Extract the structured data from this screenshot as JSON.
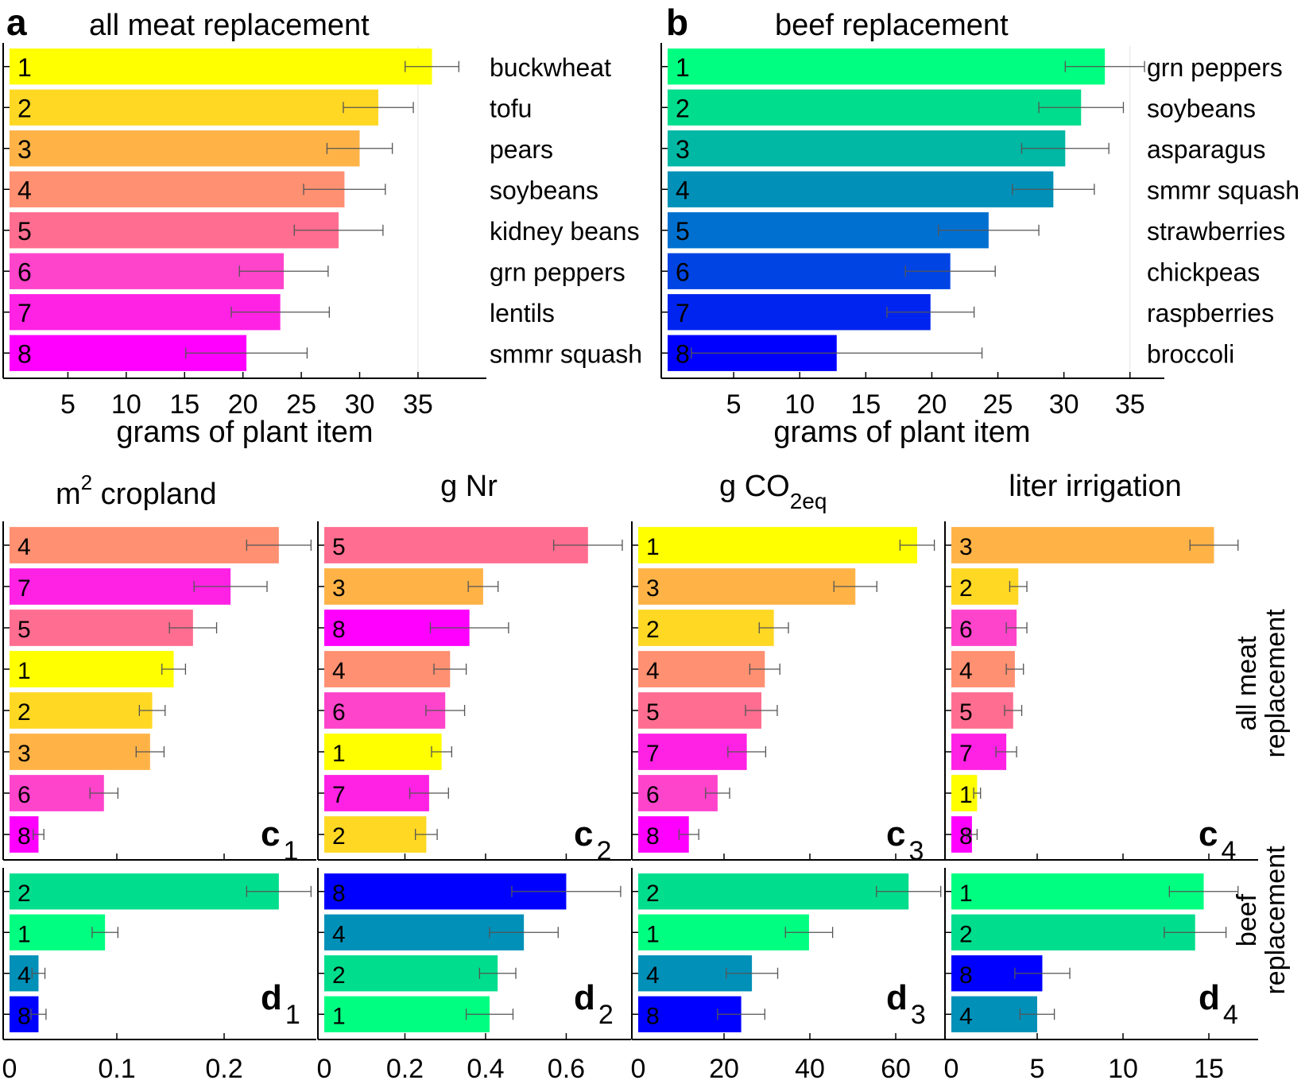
{
  "figure": {
    "panel_a": {
      "letter": "a",
      "title": "all meat replacement",
      "xlabel": "grams of plant item",
      "xticks": [
        "5",
        "10",
        "15",
        "20",
        "25",
        "30",
        "35"
      ],
      "ranks": [
        "1",
        "2",
        "3",
        "4",
        "5",
        "6",
        "7",
        "8"
      ],
      "items": [
        "buckwheat",
        "tofu",
        "pears",
        "soybeans",
        "kidney beans",
        "grn peppers",
        "lentils",
        "smmr squash"
      ],
      "colors": [
        "#ffff00",
        "#ffd824",
        "#ffb347",
        "#ff9072",
        "#ff6e90",
        "#ff44cc",
        "#ff22e4",
        "#ff00ff"
      ]
    },
    "panel_b": {
      "letter": "b",
      "title": "beef replacement",
      "xlabel": "grams of plant item",
      "xticks": [
        "5",
        "10",
        "15",
        "20",
        "25",
        "30",
        "35"
      ],
      "ranks": [
        "1",
        "2",
        "3",
        "4",
        "5",
        "6",
        "7",
        "8"
      ],
      "items": [
        "grn peppers",
        "soybeans",
        "asparagus",
        "smmr squash",
        "strawberries",
        "chickpeas",
        "raspberries",
        "broccoli"
      ],
      "colors": [
        "#00ff80",
        "#00dd8c",
        "#00b8a4",
        "#0090b8",
        "#0070d0",
        "#0044e4",
        "#0024f0",
        "#0000ff"
      ]
    },
    "metric_titles": {
      "c1": "m",
      "c1_sup": "2",
      "c1_rest": " cropland",
      "c2": "g Nr",
      "c3": "g CO",
      "c3_sub": "2eq",
      "c4": "liter irrigation"
    },
    "row_labels": {
      "meat_line1": "all meat",
      "meat_line2": "replacement",
      "beef_line1": "beef",
      "beef_line2": "replacement"
    },
    "panel_labels": {
      "c": "c",
      "d": "d",
      "sub1": "1",
      "sub2": "2",
      "sub3": "3",
      "sub4": "4"
    },
    "bottom_xticks": {
      "col1": [
        "0",
        "0.1",
        "0.2"
      ],
      "col2": [
        "0",
        "0.2",
        "0.4",
        "0.6"
      ],
      "col3": [
        "0",
        "20",
        "40",
        "60"
      ],
      "col4": [
        "0",
        "5",
        "10",
        "15"
      ]
    }
  },
  "chart_data": [
    {
      "id": "a",
      "type": "bar",
      "orientation": "horizontal",
      "title": "all meat replacement",
      "xlabel": "grams of plant item",
      "xlim": [
        0,
        39.5
      ],
      "categories": [
        "buckwheat",
        "tofu",
        "pears",
        "soybeans",
        "kidney beans",
        "grn peppers",
        "lentils",
        "smmr squash"
      ],
      "values": [
        36.2,
        31.6,
        30.0,
        28.7,
        28.2,
        23.5,
        23.2,
        20.3
      ],
      "errors": [
        2.3,
        3.0,
        2.8,
        3.5,
        3.8,
        3.8,
        4.2,
        5.2
      ]
    },
    {
      "id": "b",
      "type": "bar",
      "orientation": "horizontal",
      "title": "beef replacement",
      "xlabel": "grams of plant item",
      "xlim": [
        0,
        37
      ],
      "categories": [
        "grn peppers",
        "soybeans",
        "asparagus",
        "smmr squash",
        "strawberries",
        "chickpeas",
        "raspberries",
        "broccoli"
      ],
      "values": [
        33.1,
        31.3,
        30.1,
        29.2,
        24.3,
        21.4,
        19.9,
        12.8
      ],
      "errors": [
        3.0,
        3.2,
        3.3,
        3.1,
        3.8,
        3.4,
        3.3,
        11.0
      ]
    },
    {
      "id": "c1",
      "type": "bar",
      "orientation": "horizontal",
      "title": "m2 cropland",
      "xlim": [
        0,
        0.28
      ],
      "categories": [
        "4",
        "7",
        "5",
        "1",
        "2",
        "3",
        "6",
        "8"
      ],
      "values": [
        0.251,
        0.206,
        0.171,
        0.153,
        0.133,
        0.131,
        0.088,
        0.027
      ],
      "errors": [
        0.03,
        0.034,
        0.022,
        0.011,
        0.012,
        0.013,
        0.013,
        0.005
      ]
    },
    {
      "id": "c2",
      "type": "bar",
      "orientation": "horizontal",
      "title": "g Nr",
      "xlim": [
        0,
        0.745
      ],
      "categories": [
        "5",
        "3",
        "8",
        "4",
        "6",
        "1",
        "7",
        "2"
      ],
      "values": [
        0.654,
        0.394,
        0.36,
        0.312,
        0.3,
        0.291,
        0.26,
        0.253
      ],
      "errors": [
        0.085,
        0.037,
        0.097,
        0.04,
        0.048,
        0.025,
        0.048,
        0.027
      ]
    },
    {
      "id": "c3",
      "type": "bar",
      "orientation": "horizontal",
      "title": "g CO2eq",
      "xlim": [
        0,
        70
      ],
      "categories": [
        "1",
        "3",
        "2",
        "4",
        "5",
        "7",
        "6",
        "8"
      ],
      "values": [
        65.0,
        50.6,
        31.6,
        29.5,
        28.7,
        25.3,
        18.5,
        11.8
      ],
      "errors": [
        4.0,
        5.0,
        3.4,
        3.5,
        3.7,
        4.4,
        2.8,
        2.3
      ]
    },
    {
      "id": "c4",
      "type": "bar",
      "orientation": "horizontal",
      "title": "liter irrigation",
      "xlim": [
        0,
        17.5
      ],
      "categories": [
        "3",
        "2",
        "6",
        "4",
        "5",
        "7",
        "1",
        "8"
      ],
      "values": [
        15.3,
        3.9,
        3.8,
        3.7,
        3.6,
        3.2,
        1.5,
        1.2
      ],
      "errors": [
        1.4,
        0.5,
        0.6,
        0.5,
        0.5,
        0.6,
        0.2,
        0.3
      ]
    },
    {
      "id": "d1",
      "type": "bar",
      "orientation": "horizontal",
      "xlim": [
        0,
        0.28
      ],
      "categories": [
        "2",
        "1",
        "4",
        "8"
      ],
      "values": [
        0.251,
        0.089,
        0.027,
        0.027
      ],
      "errors": [
        0.03,
        0.012,
        0.006,
        0.007
      ]
    },
    {
      "id": "d2",
      "type": "bar",
      "orientation": "horizontal",
      "xlim": [
        0,
        0.745
      ],
      "categories": [
        "8",
        "4",
        "2",
        "1"
      ],
      "values": [
        0.6,
        0.495,
        0.43,
        0.41
      ],
      "errors": [
        0.135,
        0.085,
        0.045,
        0.058
      ]
    },
    {
      "id": "d3",
      "type": "bar",
      "orientation": "horizontal",
      "xlim": [
        0,
        70
      ],
      "categories": [
        "2",
        "1",
        "4",
        "8"
      ],
      "values": [
        63.0,
        39.8,
        26.5,
        24.0
      ],
      "errors": [
        7.5,
        5.5,
        6.0,
        5.5
      ]
    },
    {
      "id": "d4",
      "type": "bar",
      "orientation": "horizontal",
      "xlim": [
        0,
        17.5
      ],
      "categories": [
        "1",
        "2",
        "8",
        "4"
      ],
      "values": [
        14.7,
        14.2,
        5.3,
        5.0
      ],
      "errors": [
        2.0,
        1.8,
        1.6,
        1.0
      ]
    }
  ]
}
